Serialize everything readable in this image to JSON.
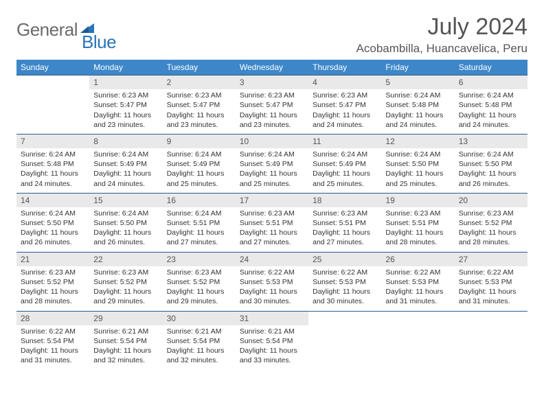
{
  "logo": {
    "word1": "General",
    "word2": "Blue"
  },
  "title": "July 2024",
  "location": "Acobambilla, Huancavelica, Peru",
  "colors": {
    "header_bg": "#3d87c9",
    "header_text": "#ffffff",
    "row_border": "#2a5a8a",
    "daynum_bg": "#e9e9e9",
    "logo_gray": "#6a6a6a",
    "logo_blue": "#2a74b8",
    "text": "#333333",
    "title_text": "#555555"
  },
  "fonts": {
    "title_size_pt": 26,
    "location_size_pt": 13,
    "header_size_pt": 9,
    "body_size_pt": 8,
    "daynum_size_pt": 9
  },
  "weekdays": [
    "Sunday",
    "Monday",
    "Tuesday",
    "Wednesday",
    "Thursday",
    "Friday",
    "Saturday"
  ],
  "weeks": [
    [
      null,
      {
        "n": "1",
        "sr": "Sunrise: 6:23 AM",
        "ss": "Sunset: 5:47 PM",
        "d1": "Daylight: 11 hours",
        "d2": "and 23 minutes."
      },
      {
        "n": "2",
        "sr": "Sunrise: 6:23 AM",
        "ss": "Sunset: 5:47 PM",
        "d1": "Daylight: 11 hours",
        "d2": "and 23 minutes."
      },
      {
        "n": "3",
        "sr": "Sunrise: 6:23 AM",
        "ss": "Sunset: 5:47 PM",
        "d1": "Daylight: 11 hours",
        "d2": "and 23 minutes."
      },
      {
        "n": "4",
        "sr": "Sunrise: 6:23 AM",
        "ss": "Sunset: 5:47 PM",
        "d1": "Daylight: 11 hours",
        "d2": "and 24 minutes."
      },
      {
        "n": "5",
        "sr": "Sunrise: 6:24 AM",
        "ss": "Sunset: 5:48 PM",
        "d1": "Daylight: 11 hours",
        "d2": "and 24 minutes."
      },
      {
        "n": "6",
        "sr": "Sunrise: 6:24 AM",
        "ss": "Sunset: 5:48 PM",
        "d1": "Daylight: 11 hours",
        "d2": "and 24 minutes."
      }
    ],
    [
      {
        "n": "7",
        "sr": "Sunrise: 6:24 AM",
        "ss": "Sunset: 5:48 PM",
        "d1": "Daylight: 11 hours",
        "d2": "and 24 minutes."
      },
      {
        "n": "8",
        "sr": "Sunrise: 6:24 AM",
        "ss": "Sunset: 5:49 PM",
        "d1": "Daylight: 11 hours",
        "d2": "and 24 minutes."
      },
      {
        "n": "9",
        "sr": "Sunrise: 6:24 AM",
        "ss": "Sunset: 5:49 PM",
        "d1": "Daylight: 11 hours",
        "d2": "and 25 minutes."
      },
      {
        "n": "10",
        "sr": "Sunrise: 6:24 AM",
        "ss": "Sunset: 5:49 PM",
        "d1": "Daylight: 11 hours",
        "d2": "and 25 minutes."
      },
      {
        "n": "11",
        "sr": "Sunrise: 6:24 AM",
        "ss": "Sunset: 5:49 PM",
        "d1": "Daylight: 11 hours",
        "d2": "and 25 minutes."
      },
      {
        "n": "12",
        "sr": "Sunrise: 6:24 AM",
        "ss": "Sunset: 5:50 PM",
        "d1": "Daylight: 11 hours",
        "d2": "and 25 minutes."
      },
      {
        "n": "13",
        "sr": "Sunrise: 6:24 AM",
        "ss": "Sunset: 5:50 PM",
        "d1": "Daylight: 11 hours",
        "d2": "and 26 minutes."
      }
    ],
    [
      {
        "n": "14",
        "sr": "Sunrise: 6:24 AM",
        "ss": "Sunset: 5:50 PM",
        "d1": "Daylight: 11 hours",
        "d2": "and 26 minutes."
      },
      {
        "n": "15",
        "sr": "Sunrise: 6:24 AM",
        "ss": "Sunset: 5:50 PM",
        "d1": "Daylight: 11 hours",
        "d2": "and 26 minutes."
      },
      {
        "n": "16",
        "sr": "Sunrise: 6:24 AM",
        "ss": "Sunset: 5:51 PM",
        "d1": "Daylight: 11 hours",
        "d2": "and 27 minutes."
      },
      {
        "n": "17",
        "sr": "Sunrise: 6:23 AM",
        "ss": "Sunset: 5:51 PM",
        "d1": "Daylight: 11 hours",
        "d2": "and 27 minutes."
      },
      {
        "n": "18",
        "sr": "Sunrise: 6:23 AM",
        "ss": "Sunset: 5:51 PM",
        "d1": "Daylight: 11 hours",
        "d2": "and 27 minutes."
      },
      {
        "n": "19",
        "sr": "Sunrise: 6:23 AM",
        "ss": "Sunset: 5:51 PM",
        "d1": "Daylight: 11 hours",
        "d2": "and 28 minutes."
      },
      {
        "n": "20",
        "sr": "Sunrise: 6:23 AM",
        "ss": "Sunset: 5:52 PM",
        "d1": "Daylight: 11 hours",
        "d2": "and 28 minutes."
      }
    ],
    [
      {
        "n": "21",
        "sr": "Sunrise: 6:23 AM",
        "ss": "Sunset: 5:52 PM",
        "d1": "Daylight: 11 hours",
        "d2": "and 28 minutes."
      },
      {
        "n": "22",
        "sr": "Sunrise: 6:23 AM",
        "ss": "Sunset: 5:52 PM",
        "d1": "Daylight: 11 hours",
        "d2": "and 29 minutes."
      },
      {
        "n": "23",
        "sr": "Sunrise: 6:23 AM",
        "ss": "Sunset: 5:52 PM",
        "d1": "Daylight: 11 hours",
        "d2": "and 29 minutes."
      },
      {
        "n": "24",
        "sr": "Sunrise: 6:22 AM",
        "ss": "Sunset: 5:53 PM",
        "d1": "Daylight: 11 hours",
        "d2": "and 30 minutes."
      },
      {
        "n": "25",
        "sr": "Sunrise: 6:22 AM",
        "ss": "Sunset: 5:53 PM",
        "d1": "Daylight: 11 hours",
        "d2": "and 30 minutes."
      },
      {
        "n": "26",
        "sr": "Sunrise: 6:22 AM",
        "ss": "Sunset: 5:53 PM",
        "d1": "Daylight: 11 hours",
        "d2": "and 31 minutes."
      },
      {
        "n": "27",
        "sr": "Sunrise: 6:22 AM",
        "ss": "Sunset: 5:53 PM",
        "d1": "Daylight: 11 hours",
        "d2": "and 31 minutes."
      }
    ],
    [
      {
        "n": "28",
        "sr": "Sunrise: 6:22 AM",
        "ss": "Sunset: 5:54 PM",
        "d1": "Daylight: 11 hours",
        "d2": "and 31 minutes."
      },
      {
        "n": "29",
        "sr": "Sunrise: 6:21 AM",
        "ss": "Sunset: 5:54 PM",
        "d1": "Daylight: 11 hours",
        "d2": "and 32 minutes."
      },
      {
        "n": "30",
        "sr": "Sunrise: 6:21 AM",
        "ss": "Sunset: 5:54 PM",
        "d1": "Daylight: 11 hours",
        "d2": "and 32 minutes."
      },
      {
        "n": "31",
        "sr": "Sunrise: 6:21 AM",
        "ss": "Sunset: 5:54 PM",
        "d1": "Daylight: 11 hours",
        "d2": "and 33 minutes."
      },
      null,
      null,
      null
    ]
  ]
}
